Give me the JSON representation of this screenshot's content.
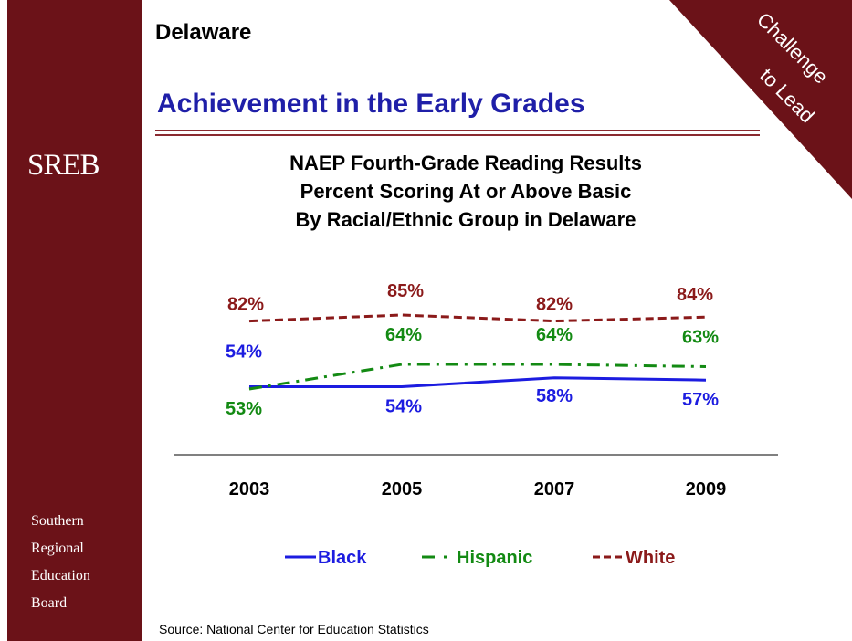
{
  "header": {
    "state": "Delaware",
    "title": "Achievement in the Early Grades",
    "ribbon_line1": "Challenge",
    "ribbon_line2": "to Lead"
  },
  "sidebar": {
    "logo": "SREB",
    "org_lines": [
      "Southern",
      "Regional",
      "Education",
      "Board"
    ]
  },
  "colors": {
    "sidebar": "#6b1218",
    "title": "#1f1fa8",
    "black_series": "#1c1ce0",
    "hispanic_series": "#138a13",
    "white_series": "#8b1a1a"
  },
  "chart_data": {
    "type": "line",
    "title": [
      "NAEP Fourth-Grade Reading Results",
      "Percent Scoring At or Above Basic",
      "By Racial/Ethnic Group in Delaware"
    ],
    "categories": [
      "2003",
      "2005",
      "2007",
      "2009"
    ],
    "unit": "%",
    "series": [
      {
        "name": "Black",
        "values": [
          54,
          54,
          58,
          57
        ],
        "labels": [
          "54%",
          "54%",
          "58%",
          "57%"
        ],
        "color": "#1c1ce0",
        "line_style": "solid"
      },
      {
        "name": "Hispanic",
        "values": [
          53,
          64,
          64,
          63
        ],
        "labels": [
          "53%",
          "64%",
          "64%",
          "63%"
        ],
        "color": "#138a13",
        "line_style": "dash-dot"
      },
      {
        "name": "White",
        "values": [
          82,
          85,
          82,
          84
        ],
        "labels": [
          "82%",
          "85%",
          "82%",
          "84%"
        ],
        "color": "#8b1a1a",
        "line_style": "dashed"
      }
    ],
    "grid": false,
    "legend_position": "bottom"
  },
  "footer": {
    "source": "Source: National Center for Education Statistics"
  }
}
